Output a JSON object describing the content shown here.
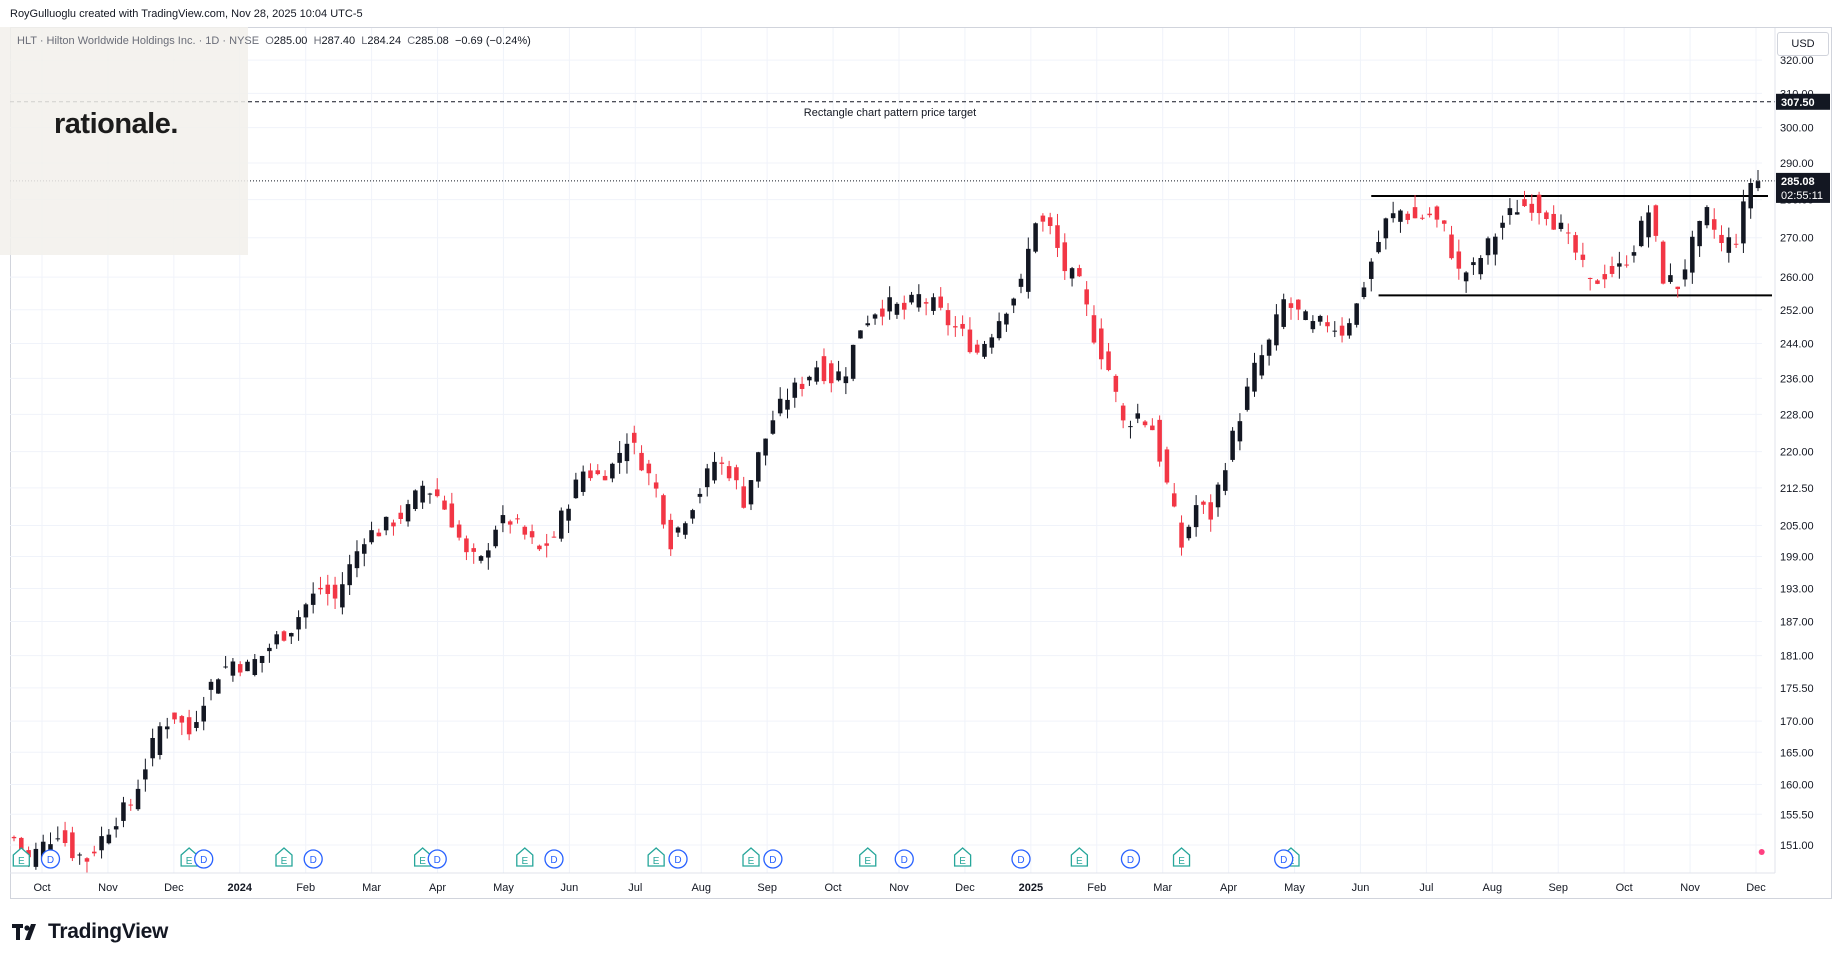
{
  "header": {
    "credit": "RoyGulluoglu created with TradingView.com, Nov 28, 2025 10:04 UTC-5"
  },
  "legend": {
    "symbol": "HLT · Hilton Worldwide Holdings Inc. · 1D · NYSE",
    "open_label": "O",
    "open": "285.00",
    "high_label": "H",
    "high": "287.40",
    "low_label": "L",
    "low": "284.24",
    "close_label": "C",
    "close": "285.08",
    "change": "−0.69 (−0.24%)"
  },
  "watermark": {
    "text": "rationale."
  },
  "currency": "USD",
  "brand": {
    "name": "TradingView"
  },
  "colors": {
    "up": "#131722",
    "down": "#f23645",
    "earnings": "#26a69a",
    "dividend": "#2962ff",
    "grid": "#f0f3fa"
  },
  "chart_data": {
    "type": "candlestick",
    "symbol": "HLT",
    "exchange": "NYSE",
    "interval": "1D",
    "price_scale": "log",
    "ylim": [
      147,
      330
    ],
    "y_ticks": [
      151.0,
      155.5,
      160.0,
      165.0,
      170.0,
      175.5,
      181.0,
      187.0,
      193.0,
      199.0,
      205.0,
      212.5,
      220.0,
      228.0,
      236.0,
      244.0,
      252.0,
      260.0,
      270.0,
      280.0,
      290.0,
      300.0,
      310.0,
      320.0
    ],
    "x_ticks": [
      "Oct",
      "Nov",
      "Dec",
      "2024",
      "Feb",
      "Mar",
      "Apr",
      "May",
      "Jun",
      "Jul",
      "Aug",
      "Sep",
      "Oct",
      "Nov",
      "Dec",
      "2025",
      "Feb",
      "Mar",
      "Apr",
      "May",
      "Jun",
      "Jul",
      "Aug",
      "Sep",
      "Oct",
      "Nov",
      "Dec"
    ],
    "last_price": {
      "value": "285.08",
      "countdown": "02:55:11"
    },
    "target": {
      "value": "307.50",
      "label": "Rectangle chart pattern price target"
    },
    "rectangle": {
      "top": 281.0,
      "bottom": 255.5
    },
    "price_path": [
      [
        0,
        152
      ],
      [
        2,
        149
      ],
      [
        4,
        151
      ],
      [
        6,
        153
      ],
      [
        8,
        150
      ],
      [
        10,
        149
      ],
      [
        12,
        152
      ],
      [
        14,
        155
      ],
      [
        16,
        157
      ],
      [
        18,
        163
      ],
      [
        20,
        169
      ],
      [
        22,
        171
      ],
      [
        24,
        168
      ],
      [
        26,
        174
      ],
      [
        28,
        178
      ],
      [
        30,
        180
      ],
      [
        32,
        179
      ],
      [
        34,
        181
      ],
      [
        36,
        184
      ],
      [
        38,
        186
      ],
      [
        40,
        190
      ],
      [
        42,
        193
      ],
      [
        44,
        191
      ],
      [
        46,
        197
      ],
      [
        48,
        203
      ],
      [
        50,
        204
      ],
      [
        52,
        206
      ],
      [
        54,
        208
      ],
      [
        56,
        213
      ],
      [
        58,
        211
      ],
      [
        60,
        206
      ],
      [
        62,
        199
      ],
      [
        64,
        198
      ],
      [
        66,
        205
      ],
      [
        68,
        206
      ],
      [
        70,
        203
      ],
      [
        72,
        200
      ],
      [
        74,
        203
      ],
      [
        76,
        210
      ],
      [
        78,
        216
      ],
      [
        80,
        215
      ],
      [
        82,
        217
      ],
      [
        84,
        223
      ],
      [
        86,
        218
      ],
      [
        88,
        212
      ],
      [
        90,
        202
      ],
      [
        92,
        207
      ],
      [
        94,
        212
      ],
      [
        96,
        218
      ],
      [
        98,
        216
      ],
      [
        100,
        210
      ],
      [
        102,
        219
      ],
      [
        104,
        227
      ],
      [
        106,
        232
      ],
      [
        108,
        235
      ],
      [
        110,
        239
      ],
      [
        112,
        236
      ],
      [
        114,
        238
      ],
      [
        116,
        248
      ],
      [
        118,
        252
      ],
      [
        120,
        253
      ],
      [
        122,
        252
      ],
      [
        124,
        255
      ],
      [
        126,
        253
      ],
      [
        128,
        249
      ],
      [
        130,
        246
      ],
      [
        132,
        242
      ],
      [
        134,
        247
      ],
      [
        136,
        253
      ],
      [
        138,
        258
      ],
      [
        140,
        275
      ],
      [
        142,
        272
      ],
      [
        144,
        262
      ],
      [
        146,
        258
      ],
      [
        148,
        246
      ],
      [
        150,
        238
      ],
      [
        152,
        226
      ],
      [
        154,
        228
      ],
      [
        156,
        225
      ],
      [
        158,
        213
      ],
      [
        160,
        201
      ],
      [
        162,
        209
      ],
      [
        164,
        207
      ],
      [
        166,
        218
      ],
      [
        168,
        228
      ],
      [
        170,
        238
      ],
      [
        172,
        244
      ],
      [
        174,
        254
      ],
      [
        176,
        251
      ],
      [
        178,
        248
      ],
      [
        180,
        249
      ],
      [
        182,
        247
      ],
      [
        184,
        253
      ],
      [
        186,
        264
      ],
      [
        188,
        274
      ],
      [
        190,
        277
      ],
      [
        192,
        275
      ],
      [
        194,
        276
      ],
      [
        196,
        272
      ],
      [
        198,
        261
      ],
      [
        200,
        262
      ],
      [
        202,
        268
      ],
      [
        204,
        274
      ],
      [
        206,
        278
      ],
      [
        208,
        279
      ],
      [
        210,
        277
      ],
      [
        212,
        272
      ],
      [
        214,
        266
      ],
      [
        216,
        258
      ],
      [
        218,
        261
      ],
      [
        220,
        262
      ],
      [
        222,
        268
      ],
      [
        224,
        277
      ],
      [
        226,
        260
      ],
      [
        228,
        258
      ],
      [
        230,
        268
      ],
      [
        232,
        276
      ],
      [
        234,
        268
      ],
      [
        236,
        270
      ],
      [
        238,
        285
      ]
    ],
    "earnings": [
      1,
      24,
      37,
      56,
      70,
      88,
      101,
      117,
      130,
      146,
      160,
      175
    ],
    "dividends": [
      5,
      26,
      41,
      58,
      74,
      91,
      104,
      122,
      138,
      153,
      174
    ]
  }
}
